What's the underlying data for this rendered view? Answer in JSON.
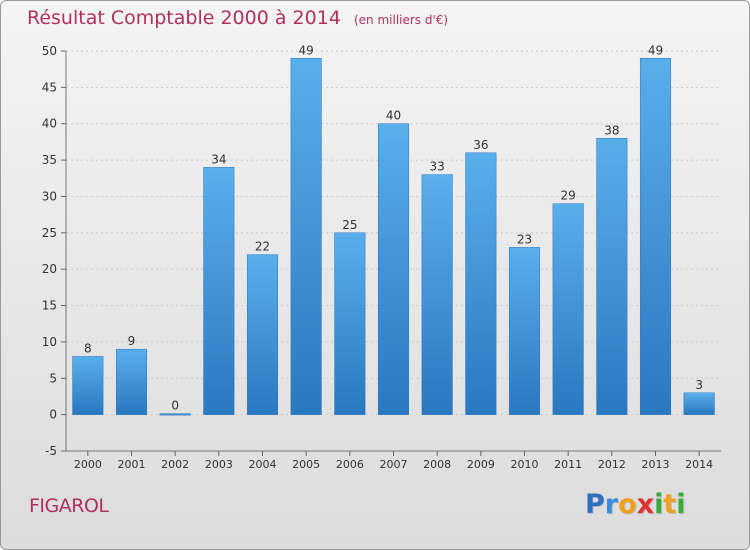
{
  "header": {
    "title": "Résultat Comptable 2000 à 2014",
    "unit": "(en milliers d'€)"
  },
  "footer": {
    "commune": "FIGAROL",
    "logo_letters": [
      {
        "char": "P",
        "color": "#2f6fc0"
      },
      {
        "char": "r",
        "color": "#3a8de0"
      },
      {
        "char": "o",
        "color": "#f0a020"
      },
      {
        "char": "x",
        "color": "#e03030"
      },
      {
        "char": "i",
        "color": "#3aaa3a"
      },
      {
        "char": "t",
        "color": "#f0a020"
      },
      {
        "char": "i",
        "color": "#3aaa3a"
      }
    ]
  },
  "colors": {
    "bar": "#4d9fe0",
    "bar_dark": "#2a78c0",
    "title": "#b03060",
    "grid": "#cccccc"
  },
  "chart_data": {
    "type": "bar",
    "categories": [
      "2000",
      "2001",
      "2002",
      "2003",
      "2004",
      "2005",
      "2006",
      "2007",
      "2008",
      "2009",
      "2010",
      "2011",
      "2012",
      "2013",
      "2014"
    ],
    "values": [
      8,
      9,
      0,
      34,
      22,
      49,
      25,
      40,
      33,
      36,
      23,
      29,
      38,
      49,
      3
    ],
    "ylim": [
      -5,
      50
    ],
    "yticks": [
      -5,
      0,
      5,
      10,
      15,
      20,
      25,
      30,
      35,
      40,
      45,
      50
    ],
    "grid": "horizontal dashed",
    "legend": "none"
  }
}
